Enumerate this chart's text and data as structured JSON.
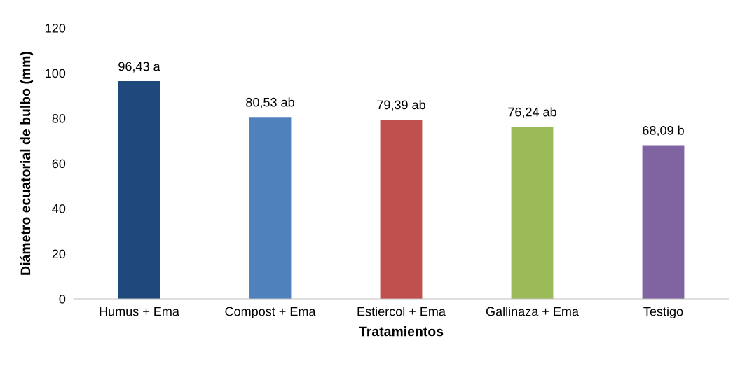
{
  "chart_data": {
    "type": "bar",
    "xlabel": "Tratamientos",
    "ylabel": "Diámetro ecuatorial de bulbo (mm)",
    "categories": [
      "Humus + Ema",
      "Compost + Ema",
      "Estiercol + Ema",
      "Gallinaza + Ema",
      "Testigo"
    ],
    "values": [
      96.43,
      80.53,
      79.39,
      76.24,
      68.09
    ],
    "colors": [
      "#1f497d",
      "#4f81bd",
      "#c0504d",
      "#9bbb59",
      "#8064a2"
    ],
    "value_labels": [
      "96,43 a",
      "80,53 ab",
      "79,39 ab",
      "76,24 ab",
      "68,09 b"
    ],
    "ylim": [
      0,
      120
    ],
    "yticks": [
      0,
      20,
      40,
      60,
      80,
      100,
      120
    ],
    "grid": false,
    "legend": false
  }
}
